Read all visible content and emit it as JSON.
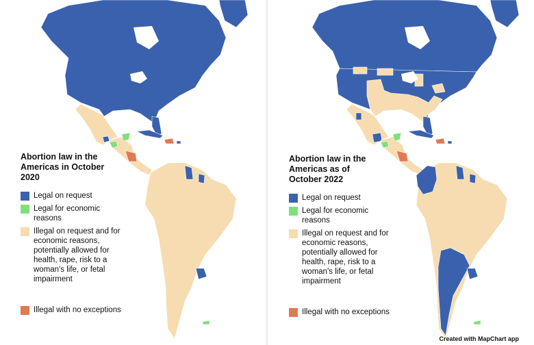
{
  "colors": {
    "legal": "#3a61ad",
    "economic": "#7fe07a",
    "illegal_partial": "#f6dcb0",
    "illegal_none": "#e07a53",
    "border": "#ffffff"
  },
  "maps": [
    {
      "title": "Abortion law in the Americas in October 2020",
      "legend": [
        {
          "key": "legal",
          "label": "Legal on request"
        },
        {
          "key": "economic",
          "label": "Legal for economic reasons"
        },
        {
          "key": "illegal_partial",
          "label": "Illegal on request and for economic reasons, potentially allowed for health, rape, risk to a woman's life, or fetal impairment"
        },
        {
          "key": "illegal_none",
          "label": "Illegal with no exceptions"
        }
      ]
    },
    {
      "title": "Abortion law in the Americas as of October 2022",
      "legend": [
        {
          "key": "legal",
          "label": "Legal on request"
        },
        {
          "key": "economic",
          "label": "Legal for economic reasons"
        },
        {
          "key": "illegal_partial",
          "label": "Illegal on request and for economic reasons, potentially allowed for health, rape, risk to a woman's life, or fetal impairment"
        },
        {
          "key": "illegal_none",
          "label": "Illegal with no exceptions"
        }
      ]
    }
  ],
  "credit": "Created with MapChart app"
}
